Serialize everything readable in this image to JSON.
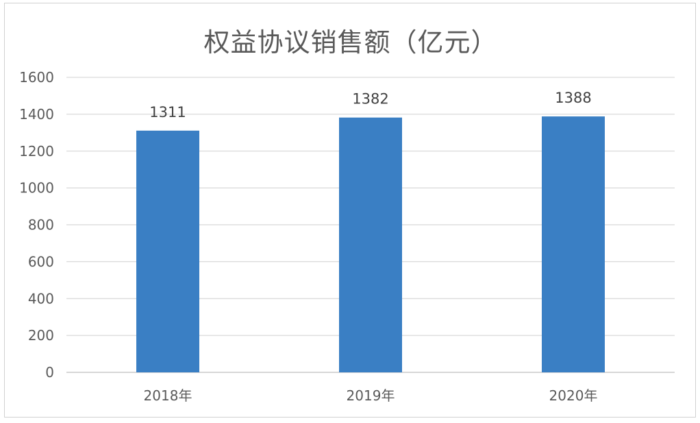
{
  "chart_data": {
    "type": "bar",
    "title": "权益协议销售额（亿元）",
    "categories": [
      "2018年",
      "2019年",
      "2020年"
    ],
    "values": [
      1311,
      1382,
      1388
    ],
    "data_labels": [
      "1311",
      "1382",
      "1388"
    ],
    "ylim": [
      0,
      1600
    ],
    "yticks": [
      "0",
      "200",
      "400",
      "600",
      "800",
      "1000",
      "1200",
      "1400",
      "1600"
    ],
    "grid": true,
    "legend": "none",
    "bar_color": "#3a7fc4"
  }
}
